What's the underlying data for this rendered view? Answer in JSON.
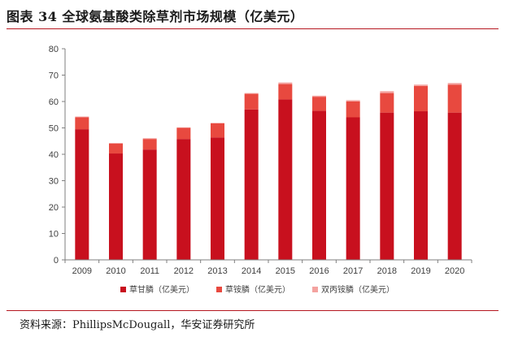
{
  "header": {
    "title": "图表 34  全球氨基酸类除草剂市场规模（亿美元）"
  },
  "source": {
    "text": "资料来源：PhillipsMcDougall，华安证券研究所"
  },
  "colors": {
    "accent_rule": "#b5171f",
    "axis": "#7f7f7f"
  },
  "chart_data": {
    "type": "bar",
    "stacked": true,
    "categories": [
      "2009",
      "2010",
      "2011",
      "2012",
      "2013",
      "2014",
      "2015",
      "2016",
      "2017",
      "2018",
      "2019",
      "2020"
    ],
    "series": [
      {
        "name": "草甘膦（亿美元）",
        "color": "#c8101e",
        "values": [
          49.5,
          40.3,
          41.8,
          45.8,
          46.4,
          57.0,
          60.8,
          56.5,
          54.0,
          55.8,
          56.3,
          55.8
        ]
      },
      {
        "name": "草铵膦（亿美元）",
        "color": "#e8493f",
        "values": [
          4.5,
          3.7,
          4.0,
          4.2,
          5.3,
          5.9,
          5.8,
          5.3,
          6.0,
          7.4,
          9.6,
          10.6
        ]
      },
      {
        "name": "双丙铵膦（亿美元）",
        "color": "#f4a3a0",
        "values": [
          0.3,
          0.3,
          0.3,
          0.2,
          0.2,
          0.3,
          0.6,
          0.4,
          0.5,
          0.7,
          0.5,
          0.6
        ]
      }
    ],
    "ylim": [
      0,
      80
    ],
    "yticks": [
      "0",
      "10",
      "20",
      "30",
      "40",
      "50",
      "60",
      "70",
      "80"
    ],
    "grid": false,
    "legend_position": "bottom"
  }
}
